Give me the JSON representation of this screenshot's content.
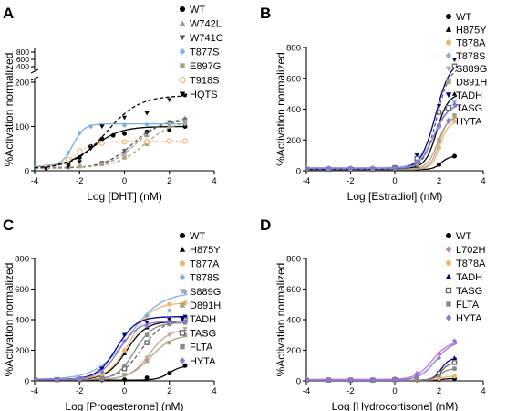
{
  "chart_data": [
    {
      "id": "A",
      "type": "scatter",
      "panel_label": "A",
      "xlabel": "Log [DHT] (nM)",
      "ylabel": "%Activation normalized",
      "xlim": [
        -4,
        4
      ],
      "xticks": [
        "-4",
        "-2",
        "0",
        "2",
        "4"
      ],
      "ylim": [
        0,
        200
      ],
      "yticks": [
        "0",
        "100",
        "200"
      ],
      "y_break": {
        "at": 200,
        "upper_ticks": [
          "400",
          "600",
          "800"
        ]
      },
      "legend": "top-right",
      "series": [
        {
          "name": "WT",
          "color": "#000000",
          "marker": "circle",
          "fit": "solid",
          "x": [
            -3.5,
            -2.5,
            -2,
            -1.5,
            -1,
            -0.5,
            0,
            1,
            2,
            2.7
          ],
          "y": [
            8,
            18,
            30,
            55,
            72,
            80,
            84,
            88,
            92,
            100
          ]
        },
        {
          "name": "W742L",
          "color": "#9a9a9a",
          "marker": "triangle-up",
          "fit": "dashed",
          "x": [
            -3.5,
            -2.5,
            -2,
            -1,
            0,
            1,
            2,
            2.7
          ],
          "y": [
            6,
            8,
            10,
            15,
            40,
            80,
            110,
            120
          ]
        },
        {
          "name": "W741C",
          "color": "#555555",
          "marker": "triangle-down",
          "fit": "dashed",
          "x": [
            -3.5,
            -2.5,
            -2,
            -1,
            0,
            1,
            2,
            2.7
          ],
          "y": [
            6,
            8,
            10,
            18,
            45,
            85,
            110,
            115
          ]
        },
        {
          "name": "T877S",
          "color": "#7ab0e8",
          "marker": "diamond",
          "fit": "solid",
          "x": [
            -3.5,
            -2.5,
            -2,
            -1.5,
            -1,
            0,
            1,
            2,
            2.7
          ],
          "y": [
            10,
            40,
            85,
            100,
            102,
            103,
            104,
            105,
            106
          ]
        },
        {
          "name": "E897G",
          "color": "#b0a080",
          "marker": "square",
          "fit": "dashed",
          "x": [
            -3.5,
            -2.5,
            -2,
            -1,
            0,
            1,
            2,
            2.7
          ],
          "y": [
            8,
            10,
            10,
            15,
            30,
            60,
            100,
            112
          ]
        },
        {
          "name": "T918S",
          "color": "#f2b46a",
          "marker": "circle-open",
          "fit": "dotted",
          "x": [
            -3.5,
            -2.5,
            -2,
            -1,
            0,
            1,
            2,
            2.7
          ],
          "y": [
            8,
            25,
            45,
            62,
            65,
            66,
            67,
            67
          ]
        },
        {
          "name": "HQTS",
          "color": "#000000",
          "marker": "triangle-down",
          "fit": "dashed",
          "x": [
            -3.5,
            -2.5,
            -2,
            -1.5,
            -1,
            0,
            1,
            2,
            2.7
          ],
          "y": [
            5,
            10,
            20,
            50,
            100,
            120,
            130,
            160,
            170
          ]
        }
      ]
    },
    {
      "id": "B",
      "type": "scatter",
      "panel_label": "B",
      "xlabel": "Log [Estradiol] (nM)",
      "ylabel": "%Activation normalized",
      "xlim": [
        -4,
        4
      ],
      "xticks": [
        "-4",
        "-2",
        "0",
        "2",
        "4"
      ],
      "ylim": [
        0,
        800
      ],
      "yticks": [
        "0",
        "200",
        "400",
        "600",
        "800"
      ],
      "legend": "top-right",
      "series": [
        {
          "name": "WT",
          "color": "#000000",
          "marker": "circle",
          "fit": "solid",
          "x": [
            -4,
            -3,
            -2,
            -1,
            0,
            1,
            2,
            2.7
          ],
          "y": [
            8,
            8,
            8,
            8,
            10,
            15,
            40,
            95
          ]
        },
        {
          "name": "H875Y",
          "color": "#000000",
          "marker": "triangle-up",
          "fit": "solid",
          "x": [
            -4,
            -3,
            -2,
            -1,
            0,
            1,
            2,
            2.7
          ],
          "y": [
            15,
            15,
            15,
            15,
            20,
            50,
            300,
            500
          ]
        },
        {
          "name": "T878A",
          "color": "#f2b46a",
          "marker": "circle",
          "fit": "solid",
          "x": [
            -4,
            -3,
            -2,
            -1,
            0,
            1,
            2,
            2.7
          ],
          "y": [
            10,
            10,
            10,
            10,
            15,
            40,
            150,
            320
          ]
        },
        {
          "name": "T878S",
          "color": "#7ab0e8",
          "marker": "diamond",
          "fit": "solid",
          "x": [
            -4,
            -3,
            -2,
            -1,
            0,
            1,
            2,
            2.7
          ],
          "y": [
            20,
            20,
            20,
            20,
            25,
            80,
            280,
            450
          ]
        },
        {
          "name": "S889G",
          "color": "#c8a0a0",
          "marker": "triangle-down",
          "fit": "solid",
          "x": [
            -4,
            -3,
            -2,
            -1,
            0,
            1,
            2,
            2.7
          ],
          "y": [
            10,
            10,
            10,
            10,
            15,
            40,
            180,
            350
          ]
        },
        {
          "name": "D891H",
          "color": "#b0a080",
          "marker": "square",
          "fit": "solid",
          "x": [
            -4,
            -3,
            -2,
            -1,
            0,
            1,
            2,
            2.7
          ],
          "y": [
            10,
            10,
            10,
            10,
            15,
            40,
            200,
            360
          ]
        },
        {
          "name": "TADH",
          "color": "#000080",
          "marker": "triangle-down",
          "fit": "solid",
          "x": [
            -4,
            -3,
            -2,
            -1,
            0,
            1,
            2,
            2.7
          ],
          "y": [
            10,
            10,
            10,
            10,
            20,
            100,
            420,
            720
          ]
        },
        {
          "name": "TASG",
          "color": "#666666",
          "marker": "square-open",
          "fit": "dashed",
          "x": [
            -4,
            -3,
            -2,
            -1,
            0,
            1,
            2,
            2.7
          ],
          "y": [
            10,
            10,
            10,
            10,
            20,
            80,
            380,
            680
          ]
        },
        {
          "name": "HYTA",
          "color": "#8877dd",
          "marker": "diamond",
          "fit": "solid",
          "x": [
            -4,
            -3,
            -2,
            -1,
            0,
            1,
            2,
            2.7
          ],
          "y": [
            15,
            15,
            15,
            15,
            20,
            60,
            300,
            430
          ]
        }
      ]
    },
    {
      "id": "C",
      "type": "scatter",
      "panel_label": "C",
      "xlabel": "Log [Progesterone] (nM)",
      "ylabel": "%Activation normalized",
      "xlim": [
        -4,
        4
      ],
      "xticks": [
        "-4",
        "-2",
        "0",
        "2",
        "4"
      ],
      "ylim": [
        0,
        800
      ],
      "yticks": [
        "0",
        "200",
        "400",
        "600",
        "800"
      ],
      "legend": "top-right",
      "series": [
        {
          "name": "WT",
          "color": "#000000",
          "marker": "circle",
          "fit": "solid",
          "x": [
            -4,
            -3,
            -2,
            -1,
            0,
            1,
            2,
            2.7
          ],
          "y": [
            5,
            5,
            5,
            5,
            8,
            20,
            50,
            100
          ]
        },
        {
          "name": "H875Y",
          "color": "#000000",
          "marker": "triangle-up",
          "fit": "solid",
          "x": [
            -4,
            -3,
            -2,
            -1,
            0,
            1,
            2,
            2.7
          ],
          "y": [
            10,
            10,
            10,
            40,
            180,
            350,
            380,
            390
          ]
        },
        {
          "name": "T877A",
          "color": "#f2b46a",
          "marker": "circle",
          "fit": "solid",
          "x": [
            -4,
            -3,
            -2,
            -1,
            0,
            1,
            2,
            2.7
          ],
          "y": [
            10,
            10,
            10,
            30,
            200,
            420,
            500,
            510
          ]
        },
        {
          "name": "T878S",
          "color": "#7ab0e8",
          "marker": "diamond",
          "fit": "solid",
          "x": [
            -4,
            -3,
            -2,
            -1,
            0,
            1,
            2,
            2.7
          ],
          "y": [
            10,
            10,
            15,
            80,
            300,
            430,
            460,
            580
          ]
        },
        {
          "name": "S889G",
          "color": "#c8a0a0",
          "marker": "triangle-down",
          "fit": "solid",
          "x": [
            -4,
            -3,
            -2,
            -1,
            0,
            1,
            2,
            2.7
          ],
          "y": [
            8,
            8,
            8,
            10,
            40,
            150,
            300,
            340
          ]
        },
        {
          "name": "D891H",
          "color": "#b0a080",
          "marker": "square",
          "fit": "solid",
          "x": [
            -4,
            -3,
            -2,
            -1,
            0,
            1,
            2,
            2.7
          ],
          "y": [
            8,
            8,
            8,
            10,
            40,
            130,
            250,
            300
          ]
        },
        {
          "name": "TADH",
          "color": "#000080",
          "marker": "triangle-down",
          "fit": "solid",
          "x": [
            -4,
            -3,
            -2,
            -1,
            0,
            1,
            2,
            2.7
          ],
          "y": [
            10,
            10,
            15,
            80,
            300,
            380,
            400,
            420
          ]
        },
        {
          "name": "TASG",
          "color": "#666666",
          "marker": "square-open",
          "fit": "dashed",
          "x": [
            -4,
            -3,
            -2,
            -1,
            0,
            1,
            2,
            2.7
          ],
          "y": [
            8,
            8,
            8,
            15,
            80,
            250,
            380,
            400
          ]
        },
        {
          "name": "FLTA",
          "color": "#888888",
          "marker": "square",
          "fit": "solid",
          "x": [
            -4,
            -3,
            -2,
            -1,
            0,
            1,
            2,
            2.7
          ],
          "y": [
            8,
            8,
            8,
            15,
            100,
            300,
            370,
            380
          ]
        },
        {
          "name": "HYTA",
          "color": "#8877dd",
          "marker": "diamond",
          "fit": "solid",
          "x": [
            -4,
            -3,
            -2,
            -1,
            0,
            1,
            2,
            2.7
          ],
          "y": [
            10,
            10,
            15,
            60,
            260,
            360,
            380,
            390
          ]
        }
      ]
    },
    {
      "id": "D",
      "type": "scatter",
      "panel_label": "D",
      "xlabel": "Log [Hydrocortisone] (nM)",
      "ylabel": "%Activation normalized",
      "xlim": [
        -4,
        4
      ],
      "xticks": [
        "-4",
        "-2",
        "0",
        "2",
        "4"
      ],
      "ylim": [
        0,
        800
      ],
      "yticks": [
        "0",
        "200",
        "400",
        "600",
        "800"
      ],
      "legend": "top-right",
      "series": [
        {
          "name": "WT",
          "color": "#000000",
          "marker": "circle",
          "fit": "solid",
          "x": [
            -4,
            -3,
            -2,
            -1,
            0,
            1,
            2,
            2.7
          ],
          "y": [
            5,
            5,
            5,
            5,
            5,
            5,
            8,
            15
          ]
        },
        {
          "name": "L702H",
          "color": "#d070e0",
          "marker": "diamond",
          "fit": "solid",
          "x": [
            -4,
            -3,
            -2,
            -1,
            0,
            1,
            2,
            2.7
          ],
          "y": [
            10,
            10,
            10,
            10,
            15,
            50,
            180,
            260
          ]
        },
        {
          "name": "T878A",
          "color": "#f2b46a",
          "marker": "circle",
          "fit": "solid",
          "x": [
            -4,
            -3,
            -2,
            -1,
            0,
            1,
            2,
            2.7
          ],
          "y": [
            5,
            5,
            5,
            5,
            5,
            8,
            15,
            30
          ]
        },
        {
          "name": "TADH",
          "color": "#000080",
          "marker": "triangle-up",
          "fit": "solid",
          "x": [
            -4,
            -3,
            -2,
            -1,
            0,
            1,
            2,
            2.7
          ],
          "y": [
            5,
            5,
            5,
            5,
            8,
            15,
            60,
            150
          ]
        },
        {
          "name": "TASG",
          "color": "#666666",
          "marker": "square-open",
          "fit": "solid",
          "x": [
            -4,
            -3,
            -2,
            -1,
            0,
            1,
            2,
            2.7
          ],
          "y": [
            5,
            5,
            5,
            5,
            8,
            15,
            50,
            120
          ]
        },
        {
          "name": "FLTA",
          "color": "#888888",
          "marker": "square",
          "fit": "solid",
          "x": [
            -4,
            -3,
            -2,
            -1,
            0,
            1,
            2,
            2.7
          ],
          "y": [
            5,
            5,
            5,
            5,
            8,
            12,
            35,
            80
          ]
        },
        {
          "name": "HYTA",
          "color": "#8877dd",
          "marker": "diamond",
          "fit": "solid",
          "x": [
            -4,
            -3,
            -2,
            -1,
            0,
            1,
            2,
            2.7
          ],
          "y": [
            5,
            5,
            5,
            5,
            10,
            40,
            150,
            260
          ]
        }
      ]
    }
  ]
}
